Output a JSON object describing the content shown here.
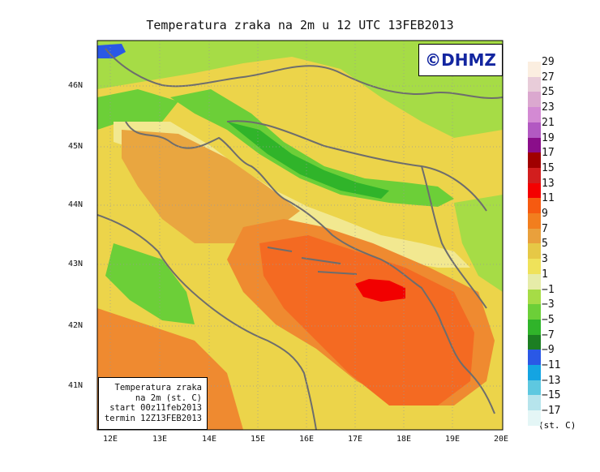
{
  "title": "Temperatura zraka na 2m u 12 UTC 13FEB2013",
  "logo": "©DHMZ",
  "legend_box": [
    "Temperatura zraka",
    "na 2m (st. C)",
    "start 00z11feb2013",
    "termin 12Z13FEB2013"
  ],
  "x_ticks": [
    "12E",
    "13E",
    "14E",
    "15E",
    "16E",
    "17E",
    "18E",
    "19E",
    "20E"
  ],
  "y_ticks": [
    "46N",
    "45N",
    "44N",
    "43N",
    "42N",
    "41N"
  ],
  "colorbar": {
    "labels": [
      "29",
      "27",
      "25",
      "23",
      "21",
      "19",
      "17",
      "15",
      "13",
      "11",
      "9",
      "7",
      "5",
      "3",
      "1",
      "−1",
      "−3",
      "−5",
      "−7",
      "−9",
      "−11",
      "−13",
      "−15",
      "−17"
    ],
    "units": "(st. C)",
    "colors": [
      "#fbeee0",
      "#e8ccd9",
      "#dba8cf",
      "#d38ad3",
      "#b259c2",
      "#8a0e8a",
      "#a00000",
      "#d21e1e",
      "#f40000",
      "#f65a10",
      "#f27e1e",
      "#e9a03c",
      "#e6c846",
      "#efe25a",
      "#e6eca8",
      "#a6dc46",
      "#6ccf38",
      "#30b42a",
      "#1c7e22",
      "#2a58e6",
      "#14a4e2",
      "#5ec8e0",
      "#b6e4ec",
      "#e4f6f6"
    ]
  },
  "map_colors": {
    "warm_orange": "#f46a22",
    "orange": "#ef8a30",
    "light_orange": "#e9a640",
    "yellow": "#ecd44a",
    "pale_yellow": "#f2e890",
    "light_green": "#a6dc46",
    "green": "#6ccf38",
    "dark_green": "#30b42a",
    "red": "#f20000",
    "blue": "#2a58e6",
    "coast": "#6d6d6d"
  }
}
